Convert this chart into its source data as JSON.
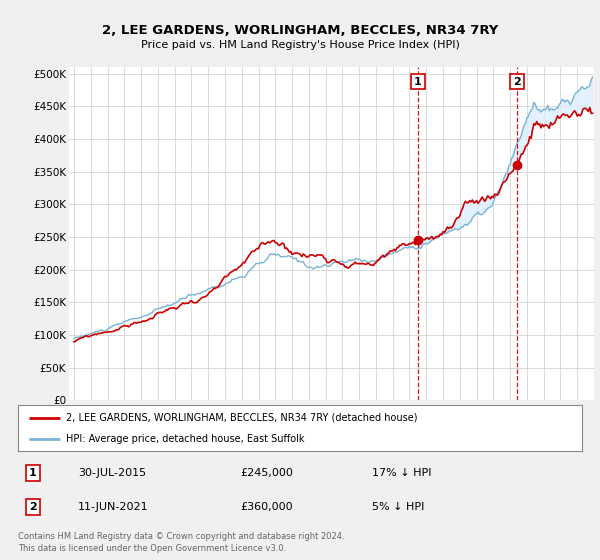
{
  "title": "2, LEE GARDENS, WORLINGHAM, BECCLES, NR34 7RY",
  "subtitle": "Price paid vs. HM Land Registry's House Price Index (HPI)",
  "yticks": [
    0,
    50000,
    100000,
    150000,
    200000,
    250000,
    300000,
    350000,
    400000,
    450000,
    500000
  ],
  "ytick_labels": [
    "£0",
    "£50K",
    "£100K",
    "£150K",
    "£200K",
    "£250K",
    "£300K",
    "£350K",
    "£400K",
    "£450K",
    "£500K"
  ],
  "hpi_color": "#7ab3d4",
  "price_color": "#cc0000",
  "vline_color": "#cc0000",
  "shade_color": "#ddeeff",
  "sale1_price": 245000,
  "sale2_price": 360000,
  "sale1_date": "30-JUL-2015",
  "sale2_date": "11-JUN-2021",
  "sale1_hpi_pct": "17% ↓ HPI",
  "sale2_hpi_pct": "5% ↓ HPI",
  "legend_label_red": "2, LEE GARDENS, WORLINGHAM, BECCLES, NR34 7RY (detached house)",
  "legend_label_blue": "HPI: Average price, detached house, East Suffolk",
  "footnote": "Contains HM Land Registry data © Crown copyright and database right 2024.\nThis data is licensed under the Open Government Licence v3.0.",
  "background_color": "#f0f0f0",
  "plot_bg_color": "#ffffff",
  "grid_color": "#cccccc"
}
